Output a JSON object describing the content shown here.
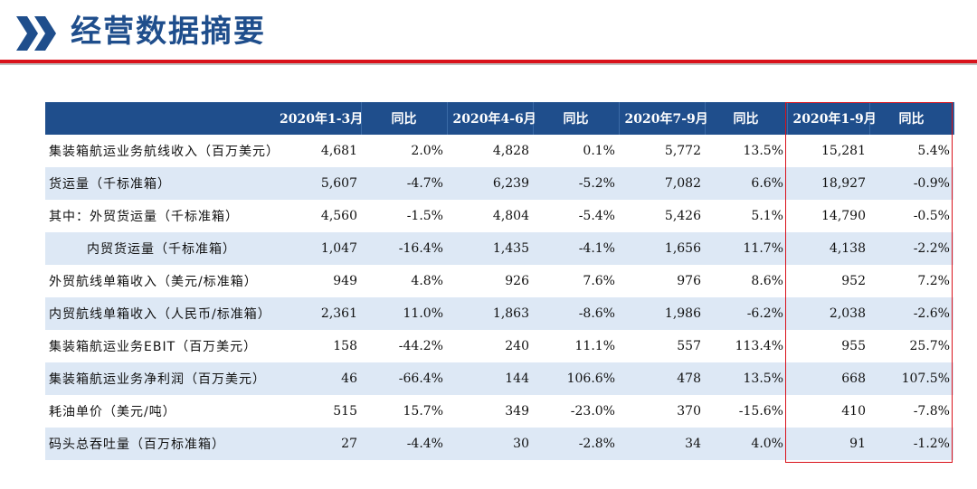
{
  "title": "经营数据摘要",
  "colors": {
    "accent": "#1f4e8c",
    "rule": "#d9121b",
    "stripe": "#dde8f5"
  },
  "icons": {
    "title_mark": "double-chevron-icon"
  },
  "table": {
    "headers": [
      "",
      "2020年1-3月",
      "同比",
      "2020年4-6月",
      "同比",
      "2020年7-9月",
      "同比",
      "2020年1-9月",
      "同比"
    ],
    "rows": [
      {
        "label": "集装箱航运业务航线收入（百万美元）",
        "values": [
          "4,681",
          "2.0%",
          "4,828",
          "0.1%",
          "5,772",
          "13.5%",
          "15,281",
          "5.4%"
        ]
      },
      {
        "label": "货运量（千标准箱）",
        "values": [
          "5,607",
          "-4.7%",
          "6,239",
          "-5.2%",
          "7,082",
          "6.6%",
          "18,927",
          "-0.9%"
        ]
      },
      {
        "label": "其中：外贸货运量（千标准箱）",
        "values": [
          "4,560",
          "-1.5%",
          "4,804",
          "-5.4%",
          "5,426",
          "5.1%",
          "14,790",
          "-0.5%"
        ]
      },
      {
        "label": "内贸货运量（千标准箱）",
        "values": [
          "1,047",
          "-16.4%",
          "1,435",
          "-4.1%",
          "1,656",
          "11.7%",
          "4,138",
          "-2.2%"
        ]
      },
      {
        "label": "外贸航线单箱收入（美元/标准箱）",
        "values": [
          "949",
          "4.8%",
          "926",
          "7.6%",
          "976",
          "8.6%",
          "952",
          "7.2%"
        ]
      },
      {
        "label": "内贸航线单箱收入（人民币/标准箱）",
        "values": [
          "2,361",
          "11.0%",
          "1,863",
          "-8.6%",
          "1,986",
          "-6.2%",
          "2,038",
          "-2.6%"
        ]
      },
      {
        "label": "集装箱航运业务EBIT（百万美元）",
        "values": [
          "158",
          "-44.2%",
          "240",
          "11.1%",
          "557",
          "113.4%",
          "955",
          "25.7%"
        ]
      },
      {
        "label": "集装箱航运业务净利润（百万美元）",
        "values": [
          "46",
          "-66.4%",
          "144",
          "106.6%",
          "478",
          "13.5%",
          "668",
          "107.5%"
        ]
      },
      {
        "label": "耗油单价（美元/吨）",
        "values": [
          "515",
          "15.7%",
          "349",
          "-23.0%",
          "370",
          "-15.6%",
          "410",
          "-7.8%"
        ]
      },
      {
        "label": "码头总吞吐量（百万标准箱）",
        "values": [
          "27",
          "-4.4%",
          "30",
          "-2.8%",
          "34",
          "4.0%",
          "91",
          "-1.2%"
        ]
      }
    ]
  }
}
